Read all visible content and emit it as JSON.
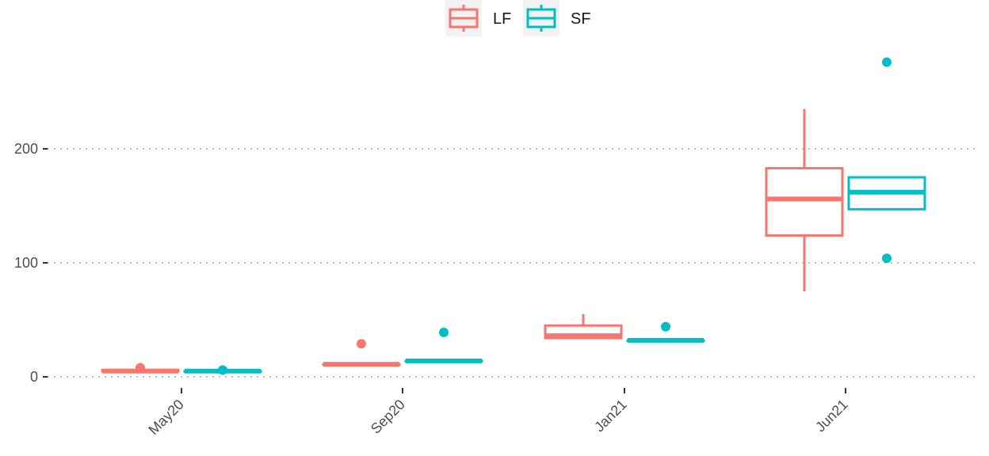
{
  "chart_data": {
    "type": "boxplot",
    "categories": [
      "May20",
      "Sep20",
      "Jan21",
      "Jun21"
    ],
    "ylim": [
      -10,
      290
    ],
    "y_ticks": [
      0,
      100,
      200
    ],
    "grid": "horizontal dotted",
    "legend_position": "top",
    "series": [
      {
        "name": "LF",
        "color": "#F8766D",
        "boxes": [
          {
            "category": "May20",
            "min": 5,
            "q1": 5,
            "median": 5,
            "q3": 6,
            "max": 6,
            "outliers": [
              8
            ]
          },
          {
            "category": "Sep20",
            "min": 11,
            "q1": 11,
            "median": 11,
            "q3": 11,
            "max": 11,
            "outliers": [
              29
            ]
          },
          {
            "category": "Jan21",
            "min": 34,
            "q1": 34,
            "median": 36,
            "q3": 45,
            "max": 55,
            "outliers": []
          },
          {
            "category": "Jun21",
            "min": 75,
            "q1": 124,
            "median": 156,
            "q3": 183,
            "max": 235,
            "outliers": []
          }
        ]
      },
      {
        "name": "SF",
        "color": "#00BFC4",
        "boxes": [
          {
            "category": "May20",
            "min": 5,
            "q1": 5,
            "median": 5,
            "q3": 5,
            "max": 5,
            "outliers": [
              6
            ]
          },
          {
            "category": "Sep20",
            "min": 14,
            "q1": 14,
            "median": 14,
            "q3": 14,
            "max": 14,
            "outliers": [
              39
            ]
          },
          {
            "category": "Jan21",
            "min": 32,
            "q1": 32,
            "median": 32,
            "q3": 32,
            "max": 32,
            "outliers": [
              44
            ]
          },
          {
            "category": "Jun21",
            "min": 147,
            "q1": 147,
            "median": 162,
            "q3": 175,
            "max": 175,
            "outliers": [
              276,
              104
            ]
          }
        ]
      }
    ]
  }
}
